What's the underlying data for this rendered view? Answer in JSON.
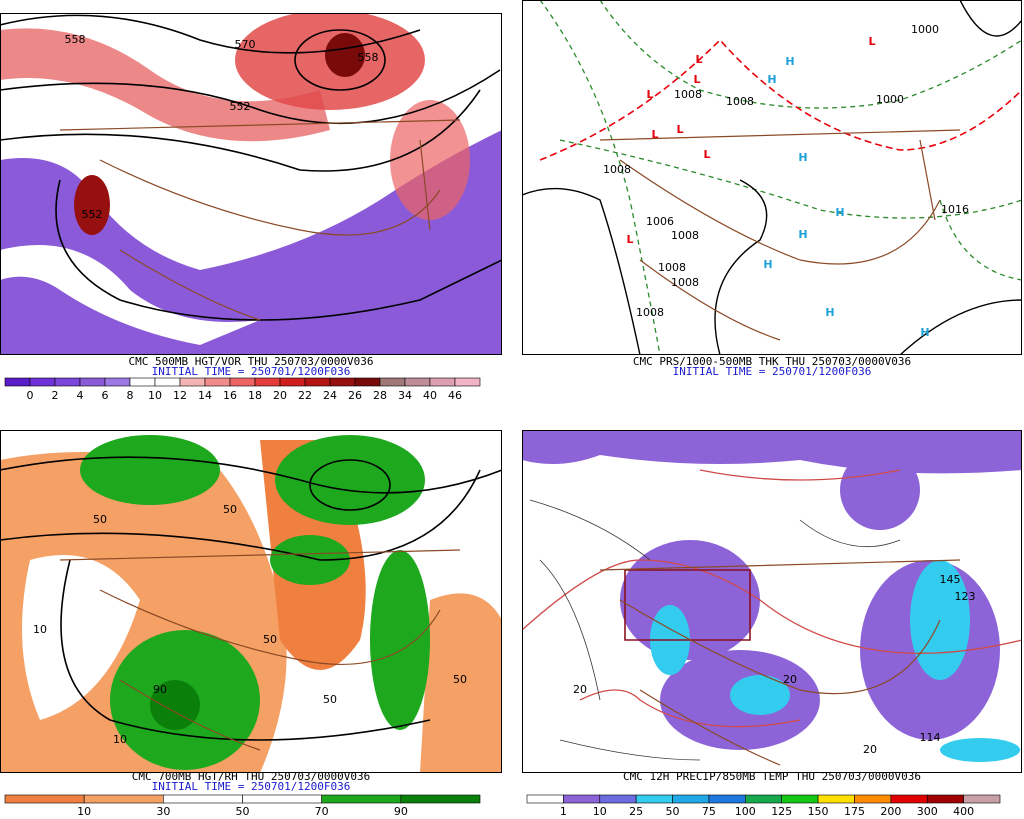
{
  "panels": [
    {
      "caption": "CMC 500MB HGT/VOR THU 250703/0000V036",
      "initial_time": "INITIAL TIME = 250701/1200F036",
      "colorbar": {
        "labels": [
          0,
          2,
          4,
          6,
          8,
          10,
          12,
          14,
          16,
          18,
          20,
          22,
          24,
          26,
          28,
          34,
          40,
          46
        ],
        "colors": [
          "#5a1ec8",
          "#6e32d8",
          "#7c46dc",
          "#8a5ad8",
          "#9c78e4",
          "#ffffff",
          "#ffffff",
          "#f4b4b4",
          "#f08c8c",
          "#ec6464",
          "#e43c3c",
          "#d01e1e",
          "#b41414",
          "#961010",
          "#780a0a",
          "#a07878",
          "#c08c98",
          "#dca0b0",
          "#f0b4c4"
        ]
      },
      "map_labels": [
        "558",
        "570",
        "558",
        "552",
        "552"
      ]
    },
    {
      "caption": "CMC PRS/1000-500MB THK THU 250703/0000V036",
      "initial_time": "INITIAL TIME = 250701/1200F036",
      "map_labels": [
        "1000",
        "1008",
        "1008",
        "1006",
        "1008",
        "1008",
        "1008",
        "1008",
        "1016",
        "1008",
        "1000"
      ],
      "markers": [
        {
          "text": "L",
          "color": "#e8000b"
        },
        {
          "text": "L",
          "color": "#e8000b"
        },
        {
          "text": "L",
          "color": "#e8000b"
        },
        {
          "text": "L",
          "color": "#e8000b"
        },
        {
          "text": "L",
          "color": "#e8000b"
        },
        {
          "text": "L",
          "color": "#e8000b"
        },
        {
          "text": "L",
          "color": "#e8000b"
        },
        {
          "text": "L",
          "color": "#e8000b"
        },
        {
          "text": "H",
          "color": "#1fa0d8"
        },
        {
          "text": "H",
          "color": "#1fa0d8"
        },
        {
          "text": "H",
          "color": "#1fa0d8"
        },
        {
          "text": "H",
          "color": "#1fa0d8"
        },
        {
          "text": "H",
          "color": "#1fa0d8"
        },
        {
          "text": "H",
          "color": "#1fa0d8"
        },
        {
          "text": "H",
          "color": "#1fa0d8"
        },
        {
          "text": "H",
          "color": "#1fa0d8"
        }
      ]
    },
    {
      "caption": "CMC 700MB HGT/RH THU 250703/0000V036",
      "initial_time": "INITIAL TIME = 250701/1200F036",
      "colorbar": {
        "labels": [
          10,
          30,
          50,
          70,
          90
        ],
        "colors": [
          "#f08040",
          "#f5a064",
          "#ffffff",
          "#ffffff",
          "#1ea81e",
          "#0a800a"
        ]
      },
      "map_labels": [
        "50",
        "50",
        "10",
        "50",
        "90",
        "50",
        "10",
        "50"
      ]
    },
    {
      "caption": "CMC 12H PRECIP/850MB TEMP THU 250703/0000V036",
      "colorbar": {
        "labels": [
          1,
          10,
          25,
          50,
          75,
          100,
          125,
          150,
          175,
          200,
          300,
          400
        ],
        "colors": [
          "#ffffff",
          "#8c64d8",
          "#6c6ce0",
          "#33ccee",
          "#20a8e8",
          "#1e78e0",
          "#16a84c",
          "#16c816",
          "#ffe000",
          "#ff8c00",
          "#e00000",
          "#a00000",
          "#c8a0a8"
        ]
      },
      "map_labels": [
        "20",
        "20",
        "20",
        "114",
        "123",
        "145"
      ]
    }
  ]
}
